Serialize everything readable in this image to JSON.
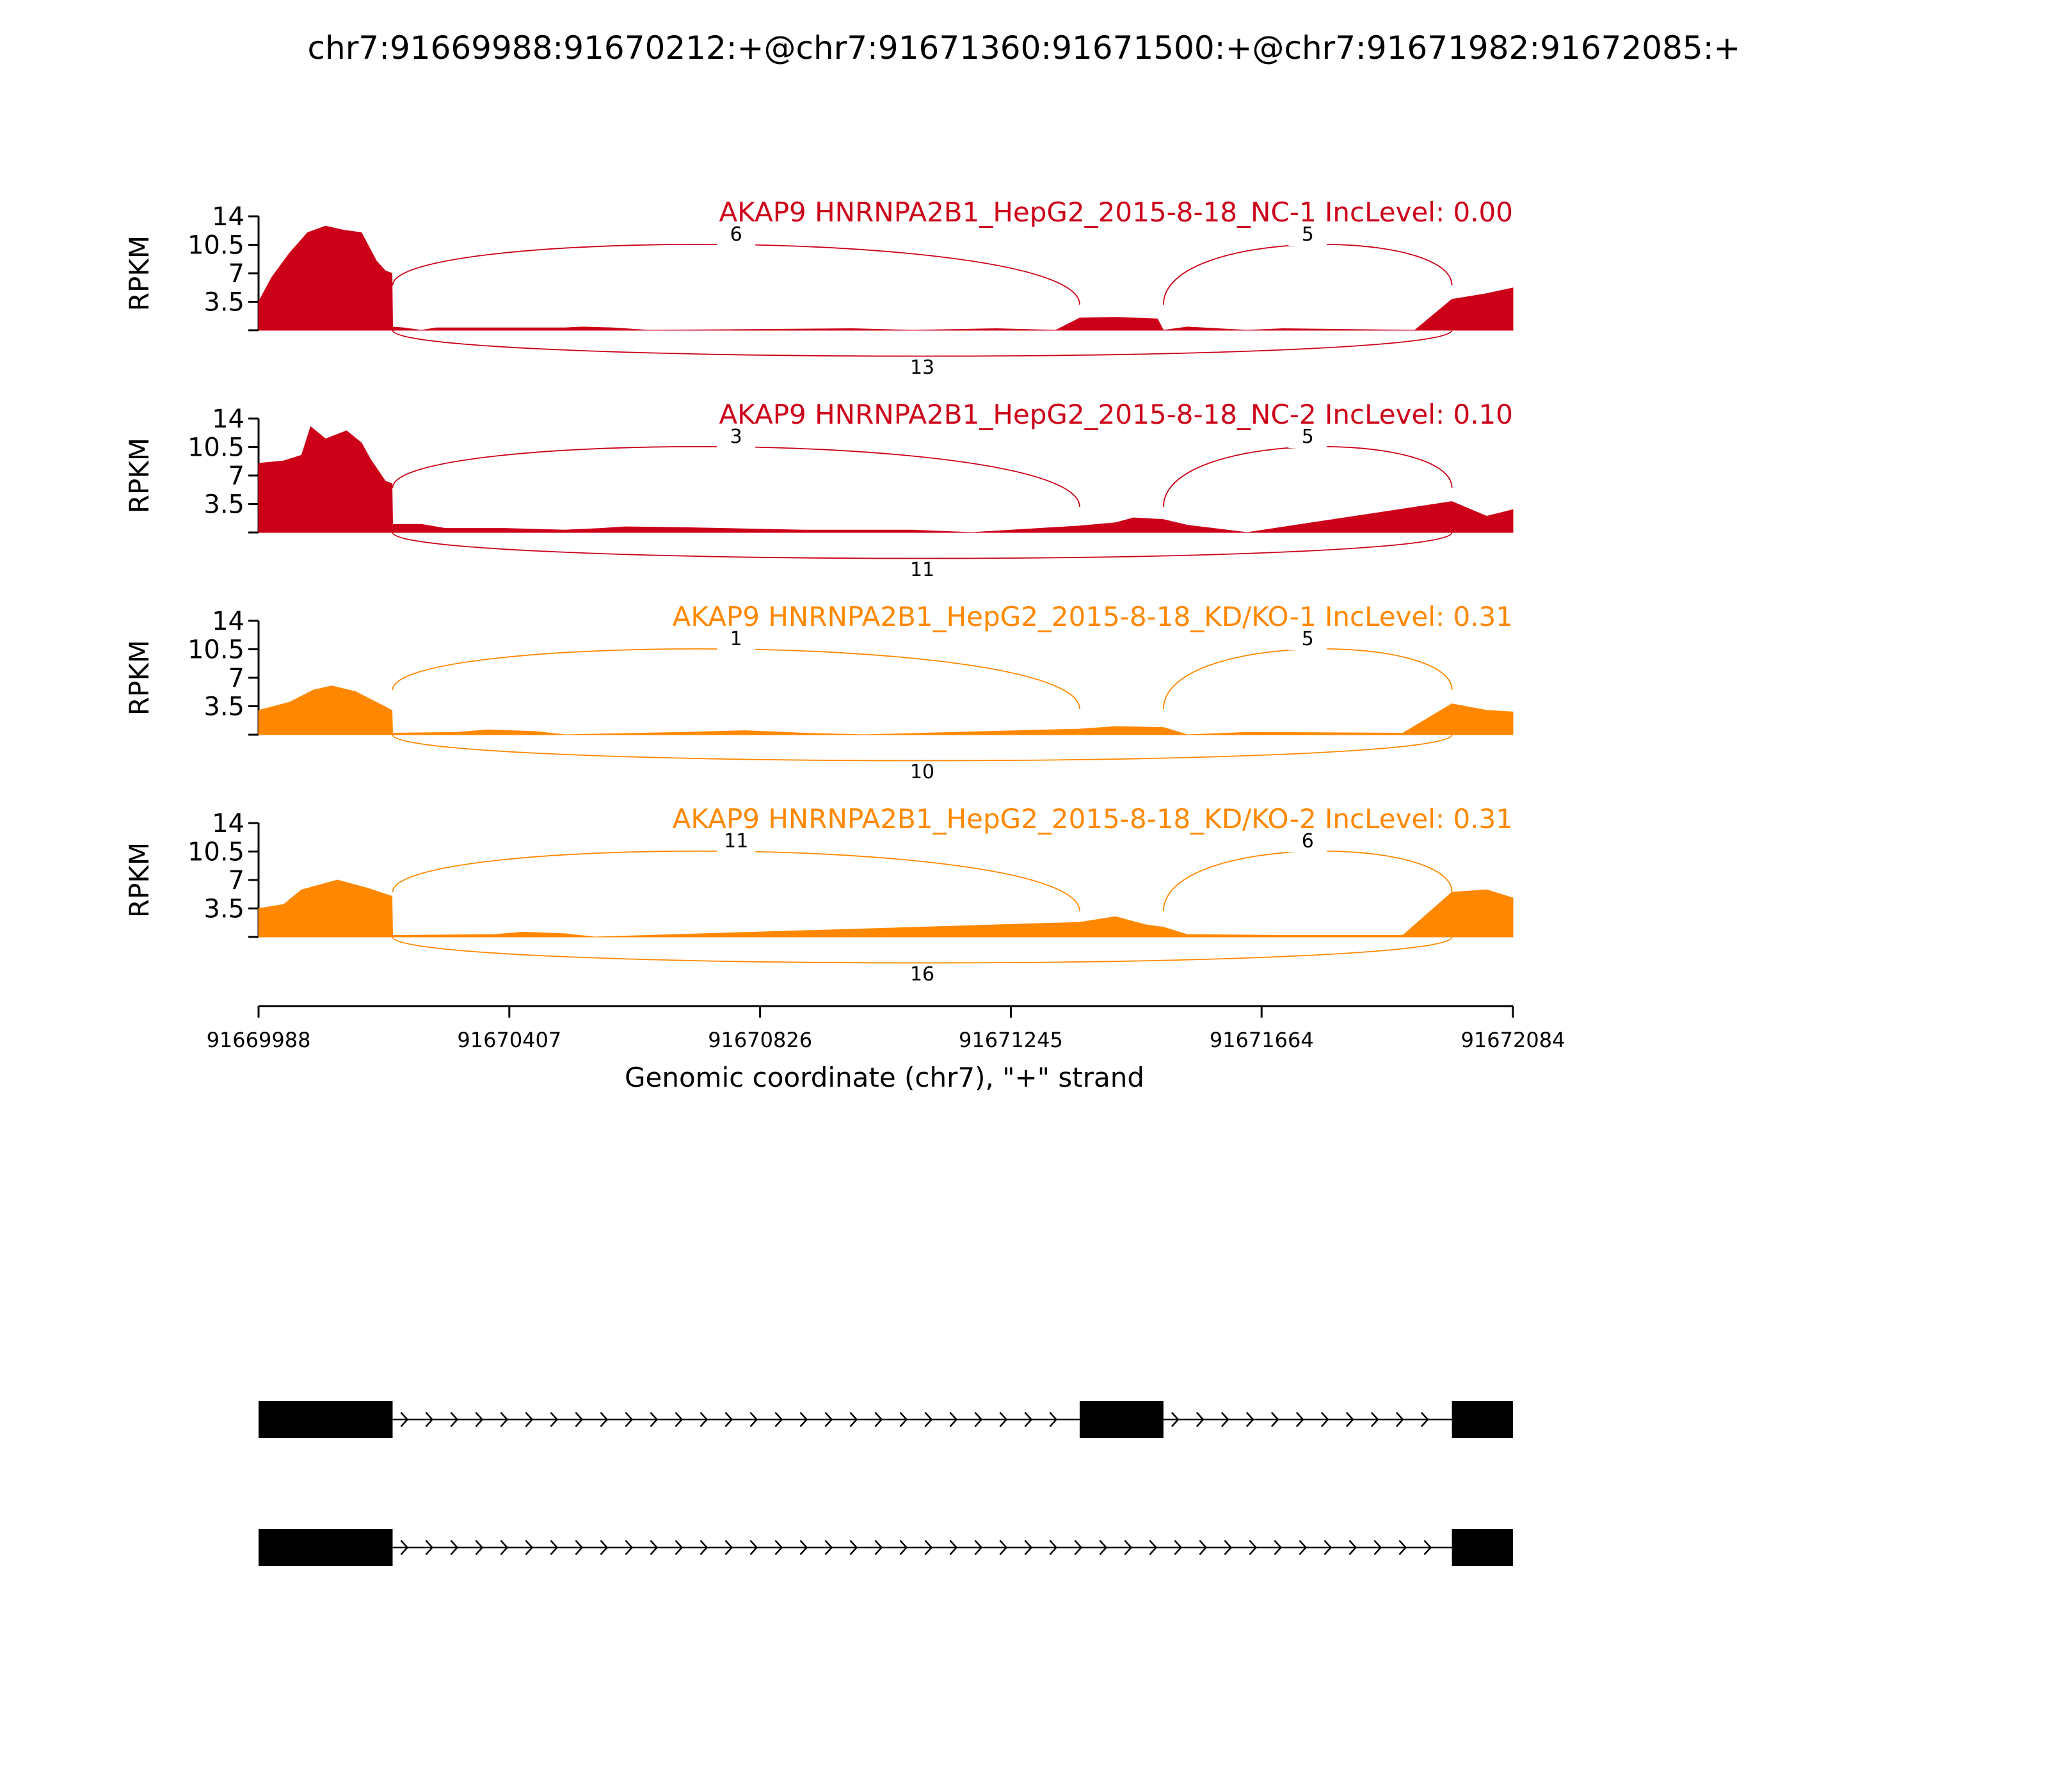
{
  "title": "chr7:91669988:91670212:+@chr7:91671360:91671500:+@chr7:91671982:91672085:+",
  "colors": {
    "nc": "#cc0018",
    "kd": "#ff8800",
    "axis": "#000000",
    "exon": "#000000"
  },
  "chart_data": {
    "type": "area",
    "ylabel": "RPKM",
    "ylim": [
      0,
      14
    ],
    "yticks": [
      "14",
      "10.5",
      "7",
      "3.5"
    ],
    "xlim": [
      91669988,
      91672084
    ],
    "xticks": [
      "91669988",
      "91670407",
      "91670826",
      "91671245",
      "91671664",
      "91672084"
    ],
    "xlabel": "Genomic coordinate (chr7), \"+\" strand",
    "tracks": [
      {
        "label": "AKAP9 HNRNPA2B1_HepG2_2015-8-18_NC-1 IncLevel: 0.00",
        "color": "#cc0018",
        "coverage": [
          [
            91669988,
            3.5
          ],
          [
            91670010,
            6.5
          ],
          [
            91670040,
            9.5
          ],
          [
            91670070,
            12.0
          ],
          [
            91670100,
            12.8
          ],
          [
            91670130,
            12.3
          ],
          [
            91670160,
            12.0
          ],
          [
            91670185,
            8.5
          ],
          [
            91670200,
            7.3
          ],
          [
            91670211,
            7.0
          ],
          [
            91670212,
            0.4
          ],
          [
            91670230,
            0.3
          ],
          [
            91670260,
            0.0
          ],
          [
            91670285,
            0.3
          ],
          [
            91670500,
            0.3
          ],
          [
            91670530,
            0.4
          ],
          [
            91670580,
            0.3
          ],
          [
            91670640,
            0.0
          ],
          [
            91670980,
            0.2
          ],
          [
            91671080,
            0.0
          ],
          [
            91671220,
            0.2
          ],
          [
            91671320,
            0.0
          ],
          [
            91671360,
            1.5
          ],
          [
            91671420,
            1.6
          ],
          [
            91671490,
            1.4
          ],
          [
            91671500,
            0.0
          ],
          [
            91671540,
            0.4
          ],
          [
            91671640,
            0.0
          ],
          [
            91671700,
            0.2
          ],
          [
            91671920,
            0.0
          ],
          [
            91671982,
            3.8
          ],
          [
            91672040,
            4.5
          ],
          [
            91672084,
            5.2
          ]
        ],
        "junctions": [
          {
            "from": 91670212,
            "to": 91671360,
            "count": "6",
            "side": "top"
          },
          {
            "from": 91671500,
            "to": 91671982,
            "count": "5",
            "side": "top"
          },
          {
            "from": 91670212,
            "to": 91671982,
            "count": "13",
            "side": "bottom"
          }
        ]
      },
      {
        "label": "AKAP9 HNRNPA2B1_HepG2_2015-8-18_NC-2 IncLevel: 0.10",
        "color": "#cc0018",
        "coverage": [
          [
            91669988,
            8.5
          ],
          [
            91670030,
            8.8
          ],
          [
            91670060,
            9.5
          ],
          [
            91670075,
            13.0
          ],
          [
            91670100,
            11.5
          ],
          [
            91670135,
            12.5
          ],
          [
            91670160,
            11.0
          ],
          [
            91670175,
            9.0
          ],
          [
            91670200,
            6.3
          ],
          [
            91670211,
            6.0
          ],
          [
            91670212,
            1.0
          ],
          [
            91670260,
            1.0
          ],
          [
            91670300,
            0.5
          ],
          [
            91670400,
            0.5
          ],
          [
            91670500,
            0.3
          ],
          [
            91670560,
            0.5
          ],
          [
            91670600,
            0.7
          ],
          [
            91670700,
            0.6
          ],
          [
            91670900,
            0.3
          ],
          [
            91671080,
            0.3
          ],
          [
            91671180,
            0.0
          ],
          [
            91671360,
            0.8
          ],
          [
            91671420,
            1.2
          ],
          [
            91671450,
            1.8
          ],
          [
            91671500,
            1.6
          ],
          [
            91671540,
            0.9
          ],
          [
            91671640,
            0.0
          ],
          [
            91671982,
            3.8
          ],
          [
            91672040,
            2.0
          ],
          [
            91672084,
            2.8
          ]
        ],
        "junctions": [
          {
            "from": 91670212,
            "to": 91671360,
            "count": "3",
            "side": "top"
          },
          {
            "from": 91671500,
            "to": 91671982,
            "count": "5",
            "side": "top"
          },
          {
            "from": 91670212,
            "to": 91671982,
            "count": "11",
            "side": "bottom"
          }
        ]
      },
      {
        "label": "AKAP9 HNRNPA2B1_HepG2_2015-8-18_KD/KO-1 IncLevel: 0.31",
        "color": "#ff8800",
        "coverage": [
          [
            91669988,
            3.0
          ],
          [
            91670040,
            4.0
          ],
          [
            91670080,
            5.5
          ],
          [
            91670110,
            6.0
          ],
          [
            91670150,
            5.3
          ],
          [
            91670190,
            3.8
          ],
          [
            91670211,
            3.0
          ],
          [
            91670212,
            0.2
          ],
          [
            91670320,
            0.3
          ],
          [
            91670370,
            0.6
          ],
          [
            91670450,
            0.4
          ],
          [
            91670500,
            0.0
          ],
          [
            91670700,
            0.3
          ],
          [
            91670800,
            0.5
          ],
          [
            91670900,
            0.2
          ],
          [
            91671000,
            0.0
          ],
          [
            91671360,
            0.7
          ],
          [
            91671420,
            1.0
          ],
          [
            91671500,
            0.9
          ],
          [
            91671540,
            0.0
          ],
          [
            91671640,
            0.3
          ],
          [
            91671900,
            0.2
          ],
          [
            91671982,
            3.8
          ],
          [
            91672040,
            3.0
          ],
          [
            91672084,
            2.8
          ]
        ],
        "junctions": [
          {
            "from": 91670212,
            "to": 91671360,
            "count": "1",
            "side": "top"
          },
          {
            "from": 91671500,
            "to": 91671982,
            "count": "5",
            "side": "top"
          },
          {
            "from": 91670212,
            "to": 91671982,
            "count": "10",
            "side": "bottom"
          }
        ]
      },
      {
        "label": "AKAP9 HNRNPA2B1_HepG2_2015-8-18_KD/KO-2 IncLevel: 0.31",
        "color": "#ff8800",
        "coverage": [
          [
            91669988,
            3.5
          ],
          [
            91670030,
            4.0
          ],
          [
            91670060,
            5.8
          ],
          [
            91670120,
            7.0
          ],
          [
            91670170,
            6.0
          ],
          [
            91670211,
            5.0
          ],
          [
            91670212,
            0.2
          ],
          [
            91670380,
            0.3
          ],
          [
            91670430,
            0.6
          ],
          [
            91670500,
            0.4
          ],
          [
            91670550,
            0.0
          ],
          [
            91671360,
            1.8
          ],
          [
            91671420,
            2.5
          ],
          [
            91671470,
            1.5
          ],
          [
            91671500,
            1.2
          ],
          [
            91671540,
            0.3
          ],
          [
            91671700,
            0.2
          ],
          [
            91671900,
            0.2
          ],
          [
            91671982,
            5.5
          ],
          [
            91672040,
            5.8
          ],
          [
            91672084,
            4.8
          ]
        ],
        "junctions": [
          {
            "from": 91670212,
            "to": 91671360,
            "count": "11",
            "side": "top"
          },
          {
            "from": 91671500,
            "to": 91671982,
            "count": "6",
            "side": "top"
          },
          {
            "from": 91670212,
            "to": 91671982,
            "count": "16",
            "side": "bottom"
          }
        ]
      }
    ],
    "isoforms": [
      {
        "exons": [
          [
            91669988,
            91670212
          ],
          [
            91671360,
            91671500
          ],
          [
            91671982,
            91672084
          ]
        ]
      },
      {
        "exons": [
          [
            91669988,
            91670212
          ],
          [
            91671982,
            91672084
          ]
        ]
      }
    ]
  }
}
